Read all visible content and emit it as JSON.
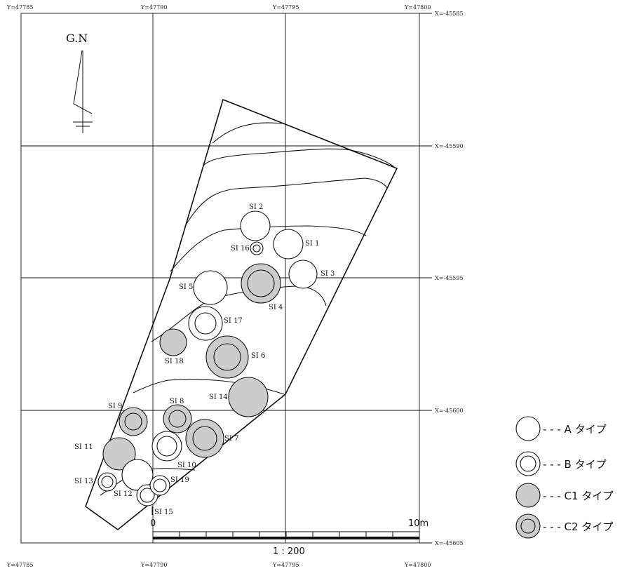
{
  "north": {
    "label": "G.N"
  },
  "grid": {
    "y_top": [
      "Y=47785",
      "Y=47790",
      "Y=47795",
      "Y=47800"
    ],
    "y_bottom": [
      "Y=47785",
      "Y=47790",
      "Y=47795",
      "Y=47800"
    ],
    "x_right": [
      "X=-45585",
      "X=-45590",
      "X=-45595",
      "X=-45600",
      "X=-45605"
    ]
  },
  "features": [
    {
      "id": "SI 1",
      "type": "A"
    },
    {
      "id": "SI 2",
      "type": "A"
    },
    {
      "id": "SI 3",
      "type": "A"
    },
    {
      "id": "SI 4",
      "type": "C2"
    },
    {
      "id": "SI 5",
      "type": "A"
    },
    {
      "id": "SI 6",
      "type": "C2"
    },
    {
      "id": "SI 7",
      "type": "C2"
    },
    {
      "id": "SI 8",
      "type": "C2"
    },
    {
      "id": "SI 9",
      "type": "C2"
    },
    {
      "id": "SI 10",
      "type": "B"
    },
    {
      "id": "SI 11",
      "type": "C1"
    },
    {
      "id": "SI 12",
      "type": "A"
    },
    {
      "id": "SI 13",
      "type": "B"
    },
    {
      "id": "SI 14",
      "type": "C1"
    },
    {
      "id": "SI 15",
      "type": "B"
    },
    {
      "id": "SI 16",
      "type": "B"
    },
    {
      "id": "SI 17",
      "type": "B"
    },
    {
      "id": "SI 18",
      "type": "C1"
    },
    {
      "id": "SI 19",
      "type": "B"
    }
  ],
  "scale_bar": {
    "start": "0",
    "end": "10m",
    "ratio": "1 : 200"
  },
  "legend": [
    {
      "type": "A",
      "label": "- - - A タイプ"
    },
    {
      "type": "B",
      "label": "- - - B タイプ"
    },
    {
      "type": "C1",
      "label": "- - - C1 タイプ"
    },
    {
      "type": "C2",
      "label": "- - - C2 タイプ"
    }
  ],
  "colors": {
    "line": "#111111",
    "fill_gray": "#cccccc",
    "background": "#ffffff"
  }
}
